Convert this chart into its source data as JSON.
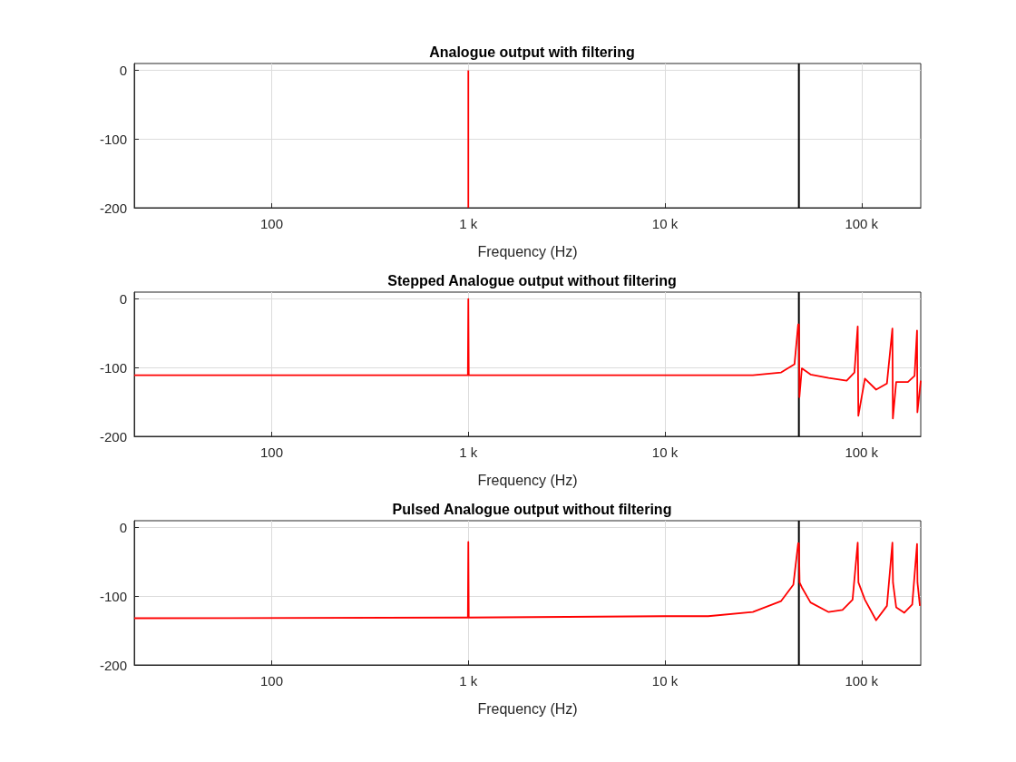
{
  "chart_data": [
    {
      "type": "line",
      "title": "Analogue output with filtering",
      "xlabel": "Frequency (Hz)",
      "log": "x",
      "grid": true,
      "color": "#ff0000",
      "x": [
        1000,
        1000
      ],
      "values": [
        -200,
        0
      ],
      "xlim": [
        20,
        200000
      ],
      "xticks": [
        {
          "value": 100,
          "label": "100"
        },
        {
          "value": 1000,
          "label": "1 k"
        },
        {
          "value": 10000,
          "label": "10 k"
        },
        {
          "value": 100000,
          "label": "100 k"
        }
      ],
      "ylim": [
        -200,
        10
      ],
      "yticks": [
        -200,
        -100,
        0
      ],
      "ref_lines": [
        {
          "axis": "x",
          "value": 48000,
          "label": null,
          "color": "#000000"
        }
      ]
    },
    {
      "type": "line",
      "title": "Stepped Analogue output without filtering",
      "xlabel": "Frequency (Hz)",
      "log": "x",
      "grid": true,
      "color": "#ff0000",
      "x": [
        20,
        995,
        1000,
        1005,
        10000,
        28000,
        39000,
        45600,
        47600,
        48000,
        48300,
        49700,
        55000,
        68000,
        84000,
        92000,
        95600,
        96000,
        96300,
        104000,
        118600,
        134600,
        143500,
        144000,
        144300,
        150000,
        172000,
        186000,
        191500,
        192000,
        192300,
        200000
      ],
      "values": [
        -111,
        -111,
        0,
        -111,
        -111,
        -111,
        -107,
        -95,
        -37,
        -37,
        -143,
        -101,
        -110,
        -115,
        -119,
        -107,
        -40,
        -40,
        -170,
        -116,
        -132,
        -123,
        -43,
        -43,
        -174,
        -121,
        -121,
        -112,
        -46,
        -46,
        -165,
        -119
      ],
      "xlim": [
        20,
        200000
      ],
      "xticks": [
        {
          "value": 100,
          "label": "100"
        },
        {
          "value": 1000,
          "label": "1 k"
        },
        {
          "value": 10000,
          "label": "10 k"
        },
        {
          "value": 100000,
          "label": "100 k"
        }
      ],
      "ylim": [
        -200,
        10
      ],
      "yticks": [
        -200,
        -100,
        0
      ],
      "ref_lines": [
        {
          "axis": "x",
          "value": 48000,
          "label": null,
          "color": "#000000"
        }
      ]
    },
    {
      "type": "line",
      "title": "Pulsed Analogue output without filtering",
      "xlabel": "Frequency (Hz)",
      "log": "x",
      "grid": true,
      "color": "#ff0000",
      "x": [
        20,
        995,
        1000,
        1005,
        10000,
        16600,
        28000,
        39000,
        45000,
        47600,
        48000,
        48400,
        49700,
        55000,
        68000,
        80000,
        90000,
        95600,
        96000,
        96400,
        104000,
        118600,
        134600,
        143500,
        144000,
        144500,
        150000,
        165000,
        181000,
        191500,
        192000,
        192500,
        198000
      ],
      "values": [
        -132,
        -131,
        -21,
        -131,
        -129,
        -129,
        -123,
        -107,
        -83,
        -23,
        -23,
        -80,
        -87,
        -109,
        -123,
        -120,
        -105,
        -22,
        -22,
        -80,
        -105,
        -135,
        -114,
        -22,
        -22,
        -80,
        -116,
        -124,
        -112,
        -24,
        -24,
        -80,
        -114
      ],
      "xlim": [
        20,
        200000
      ],
      "xticks": [
        {
          "value": 100,
          "label": "100"
        },
        {
          "value": 1000,
          "label": "1 k"
        },
        {
          "value": 10000,
          "label": "10 k"
        },
        {
          "value": 100000,
          "label": "100 k"
        }
      ],
      "ylim": [
        -200,
        10
      ],
      "yticks": [
        -200,
        -100,
        0
      ],
      "ref_lines": [
        {
          "axis": "x",
          "value": 48000,
          "label": null,
          "color": "#000000"
        }
      ]
    }
  ]
}
